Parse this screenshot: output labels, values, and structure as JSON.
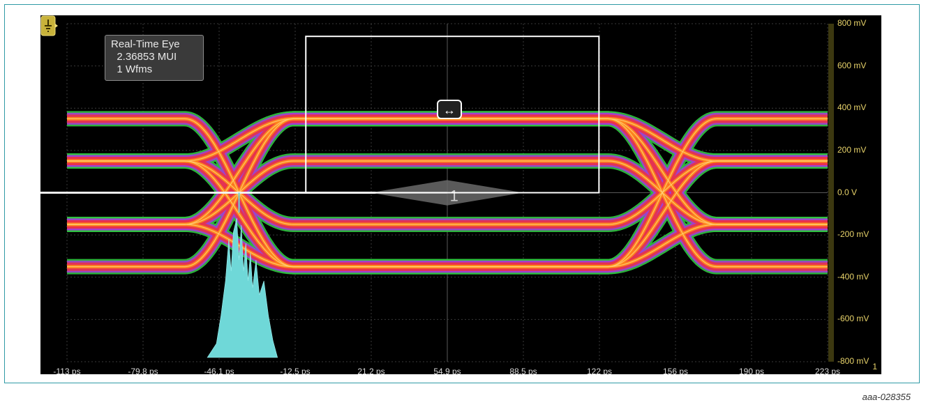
{
  "readout": {
    "line1": "Real-Time Eye",
    "line2": "  2.36853 MUI",
    "line3": "  1 Wfms"
  },
  "figure_id": "aaa-028355",
  "marker_labels": {
    "trigger": "T",
    "channel_end": "1",
    "eye_marker": "1"
  },
  "colors": {
    "background": "#000000",
    "grid": "#3a3a3a",
    "trace_hot": "#ff8a1a",
    "trace_warm": "#e8324a",
    "trace_cool": "#a040d0",
    "trace_edge": "#2fc040",
    "histogram": "#6fd8d8",
    "axis_yellow": "#e8d36a",
    "mask_box": "#ffffff"
  },
  "chart_data": {
    "type": "line",
    "x_ticks": [
      "-113 ps",
      "-79.8 ps",
      "-46.1 ps",
      "-12.5 ps",
      "21.2 ps",
      "54.9 ps",
      "88.5 ps",
      "122 ps",
      "156 ps",
      "190 ps",
      "223 ps"
    ],
    "y_ticks": [
      "800 mV",
      "600 mV",
      "400 mV",
      "200 mV",
      "0.0 V",
      "-200 mV",
      "-400 mV",
      "-600 mV",
      "-800 mV"
    ],
    "xlim": [
      -113,
      223
    ],
    "ylim": [
      -800,
      800
    ],
    "eye_levels_mV": [
      350,
      150,
      -150,
      -350
    ],
    "crossings_ps": [
      -37,
      150
    ],
    "mask_box_ps": [
      -7.5,
      122
    ],
    "mask_box_mV": [
      0,
      740
    ],
    "histogram": {
      "x_range_ps": [
        -51,
        -20
      ],
      "peak_x_ps": -37
    }
  }
}
